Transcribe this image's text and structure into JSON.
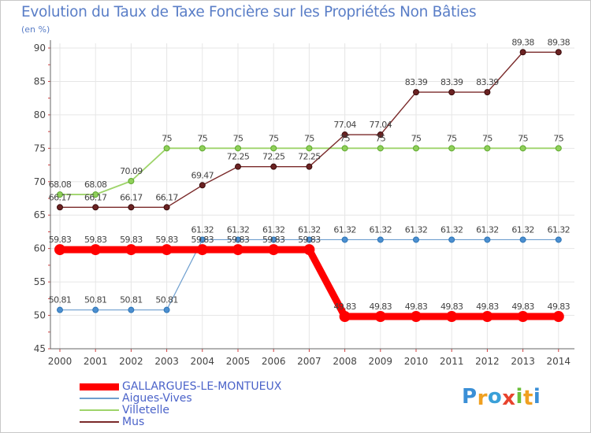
{
  "logo": {
    "letters": [
      "P",
      "r",
      "o",
      "x",
      "i",
      "t",
      "i"
    ],
    "colors": [
      "#3a8fd6",
      "#f0a020",
      "#3aa0d8",
      "#e8432d",
      "#6bbf3a",
      "#f0a020",
      "#3a8fd6"
    ]
  },
  "chart_data": {
    "type": "line",
    "title": "Evolution du Taux de Taxe Foncière sur les Propriétés Non Bâties",
    "subtitle": "(en %)",
    "xlabel": "",
    "ylabel": "",
    "x": [
      "2000",
      "2001",
      "2002",
      "2003",
      "2004",
      "2005",
      "2006",
      "2007",
      "2008",
      "2009",
      "2010",
      "2011",
      "2012",
      "2013",
      "2014"
    ],
    "ylim": [
      45,
      90
    ],
    "yticks": [
      45,
      50,
      55,
      60,
      65,
      70,
      75,
      80,
      85,
      90
    ],
    "grid": true,
    "legend_position": "bottom-left",
    "series": [
      {
        "name": "GALLARGUES-LE-MONTUEUX",
        "color": "#ff0000",
        "values": [
          59.83,
          59.83,
          59.83,
          59.83,
          59.83,
          59.83,
          59.83,
          59.83,
          49.83,
          49.83,
          49.83,
          49.83,
          49.83,
          49.83,
          49.83
        ],
        "labels": [
          "59.83",
          "59.83",
          "59.83",
          "59.83",
          "59.83",
          "59.83",
          "59.83",
          "59.83",
          "49.83",
          "49.83",
          "49.83",
          "49.83",
          "49.83",
          "49.83",
          "49.83"
        ]
      },
      {
        "name": "Aigues-Vives",
        "color": "#6f9fcf",
        "values": [
          50.81,
          50.81,
          50.81,
          50.81,
          61.32,
          61.32,
          61.32,
          61.32,
          61.32,
          61.32,
          61.32,
          61.32,
          61.32,
          61.32,
          61.32
        ],
        "labels": [
          "50.81",
          "50.81",
          "50.81",
          "50.81",
          "61.32",
          "61.32",
          "61.32",
          "61.32",
          "61.32",
          "61.32",
          "61.32",
          "61.32",
          "61.32",
          "61.32",
          "61.32"
        ]
      },
      {
        "name": "Villetelle",
        "color": "#9ed46a",
        "values": [
          68.08,
          68.08,
          70.09,
          75,
          75,
          75,
          75,
          75,
          75,
          75,
          75,
          75,
          75,
          75,
          75
        ],
        "labels": [
          "68.08",
          "68.08",
          "70.09",
          "75",
          "75",
          "75",
          "75",
          "75",
          "75",
          "75",
          "75",
          "75",
          "75",
          "75",
          "75"
        ]
      },
      {
        "name": "Mus",
        "color": "#7a2a2a",
        "values": [
          66.17,
          66.17,
          66.17,
          66.17,
          69.47,
          72.25,
          72.25,
          72.25,
          77.04,
          77.04,
          83.39,
          83.39,
          83.39,
          89.38,
          89.38
        ],
        "labels": [
          "66.17",
          "66.17",
          "66.17",
          "66.17",
          "69.47",
          "72.25",
          "72.25",
          "72.25",
          "77.04",
          "77.04",
          "83.39",
          "83.39",
          "83.39",
          "89.38",
          "89.38"
        ]
      }
    ]
  }
}
